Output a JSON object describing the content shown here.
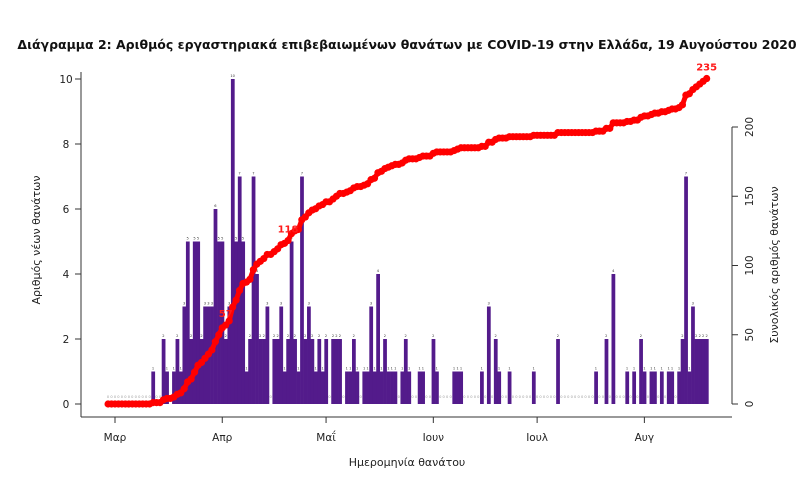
{
  "chart_data": {
    "type": "bar+line",
    "title": "Διάγραμμα 2: Αριθμός εργαστηριακά επιβεβαιωμένων θανάτων με COVID-19 στην Ελλάδα, 19 Αυγούστου 2020",
    "xlabel": "Ημερομηνία θανάτου",
    "ylabel_left": "Αριθμός νέων θανάτων",
    "ylabel_right": "Συνολικός αριθμός θανάτων",
    "ylim_left": [
      0,
      10
    ],
    "yticks_left": [
      0,
      2,
      4,
      6,
      8,
      10
    ],
    "ylim_right": [
      0,
      235
    ],
    "yticks_right": [
      0,
      50,
      100,
      150,
      200
    ],
    "x_month_ticks": [
      {
        "date": "03-01",
        "label": "Μαρ"
      },
      {
        "date": "04-01",
        "label": "Απρ"
      },
      {
        "date": "05-01",
        "label": "Μαΐ"
      },
      {
        "date": "06-01",
        "label": "Ιουν"
      },
      {
        "date": "07-01",
        "label": "Ιουλ"
      },
      {
        "date": "08-01",
        "label": "Αυγ"
      }
    ],
    "dates": [
      "02-28",
      "02-29",
      "03-01",
      "03-02",
      "03-03",
      "03-04",
      "03-05",
      "03-06",
      "03-07",
      "03-08",
      "03-09",
      "03-10",
      "03-11",
      "03-12",
      "03-13",
      "03-14",
      "03-15",
      "03-16",
      "03-17",
      "03-18",
      "03-19",
      "03-20",
      "03-21",
      "03-22",
      "03-23",
      "03-24",
      "03-25",
      "03-26",
      "03-27",
      "03-28",
      "03-29",
      "03-30",
      "03-31",
      "04-01",
      "04-02",
      "04-03",
      "04-04",
      "04-05",
      "04-06",
      "04-07",
      "04-08",
      "04-09",
      "04-10",
      "04-11",
      "04-12",
      "04-13",
      "04-14",
      "04-15",
      "04-16",
      "04-17",
      "04-18",
      "04-19",
      "04-20",
      "04-21",
      "04-22",
      "04-23",
      "04-24",
      "04-25",
      "04-26",
      "04-27",
      "04-28",
      "04-29",
      "04-30",
      "05-01",
      "05-02",
      "05-03",
      "05-04",
      "05-05",
      "05-06",
      "05-07",
      "05-08",
      "05-09",
      "05-10",
      "05-11",
      "05-12",
      "05-13",
      "05-14",
      "05-15",
      "05-16",
      "05-17",
      "05-18",
      "05-19",
      "05-20",
      "05-21",
      "05-22",
      "05-23",
      "05-24",
      "05-25",
      "05-26",
      "05-27",
      "05-28",
      "05-29",
      "05-30",
      "05-31",
      "06-01",
      "06-02",
      "06-03",
      "06-04",
      "06-05",
      "06-06",
      "06-07",
      "06-08",
      "06-09",
      "06-10",
      "06-11",
      "06-12",
      "06-13",
      "06-14",
      "06-15",
      "06-16",
      "06-17",
      "06-18",
      "06-19",
      "06-20",
      "06-21",
      "06-22",
      "06-23",
      "06-24",
      "06-25",
      "06-26",
      "06-27",
      "06-28",
      "06-29",
      "06-30",
      "07-01",
      "07-02",
      "07-03",
      "07-04",
      "07-05",
      "07-06",
      "07-07",
      "07-08",
      "07-09",
      "07-10",
      "07-11",
      "07-12",
      "07-13",
      "07-14",
      "07-15",
      "07-16",
      "07-17",
      "07-18",
      "07-19",
      "07-20",
      "07-21",
      "07-22",
      "07-23",
      "07-24",
      "07-25",
      "07-26",
      "07-27",
      "07-28",
      "07-29",
      "07-30",
      "07-31",
      "08-01",
      "08-02",
      "08-03",
      "08-04",
      "08-05",
      "08-06",
      "08-07",
      "08-08",
      "08-09",
      "08-10",
      "08-11",
      "08-12",
      "08-13",
      "08-14",
      "08-15",
      "08-16",
      "08-17",
      "08-18",
      "08-19"
    ],
    "series": [
      {
        "type": "bar",
        "axis": "left",
        "color": "#531b8b",
        "values": [
          0,
          0,
          0,
          0,
          0,
          0,
          0,
          0,
          0,
          0,
          0,
          0,
          0,
          1,
          0,
          0,
          2,
          1,
          0,
          1,
          2,
          1,
          3,
          5,
          2,
          5,
          5,
          2,
          3,
          3,
          3,
          6,
          5,
          5,
          2,
          3,
          10,
          5,
          7,
          5,
          1,
          2,
          7,
          4,
          2,
          2,
          3,
          0,
          2,
          2,
          3,
          1,
          2,
          5,
          2,
          1,
          7,
          2,
          3,
          2,
          1,
          2,
          1,
          2,
          0,
          2,
          2,
          2,
          0,
          1,
          1,
          2,
          1,
          0,
          1,
          1,
          3,
          1,
          4,
          1,
          2,
          1,
          1,
          1,
          0,
          1,
          2,
          1,
          0,
          0,
          1,
          1,
          0,
          0,
          2,
          1,
          0,
          0,
          0,
          0,
          1,
          1,
          1,
          0,
          0,
          0,
          0,
          0,
          1,
          0,
          3,
          0,
          2,
          1,
          0,
          0,
          1,
          0,
          0,
          0,
          0,
          0,
          0,
          1,
          0,
          0,
          0,
          0,
          0,
          0,
          2,
          0,
          0,
          0,
          0,
          0,
          0,
          0,
          0,
          0,
          0,
          1,
          0,
          0,
          2,
          0,
          4,
          0,
          0,
          0,
          1,
          0,
          1,
          0,
          2,
          1,
          0,
          1,
          1,
          0,
          1,
          0,
          1,
          1,
          0,
          1,
          2,
          7,
          1,
          3,
          2,
          2,
          2,
          2
        ]
      },
      {
        "type": "line",
        "axis": "right",
        "color": "#ff0000",
        "cumulative_of_bars": true
      }
    ],
    "annotations": [
      {
        "value": 57,
        "label": "57"
      },
      {
        "value": 118,
        "label": "118"
      },
      {
        "value": 235,
        "label": "235"
      }
    ]
  }
}
